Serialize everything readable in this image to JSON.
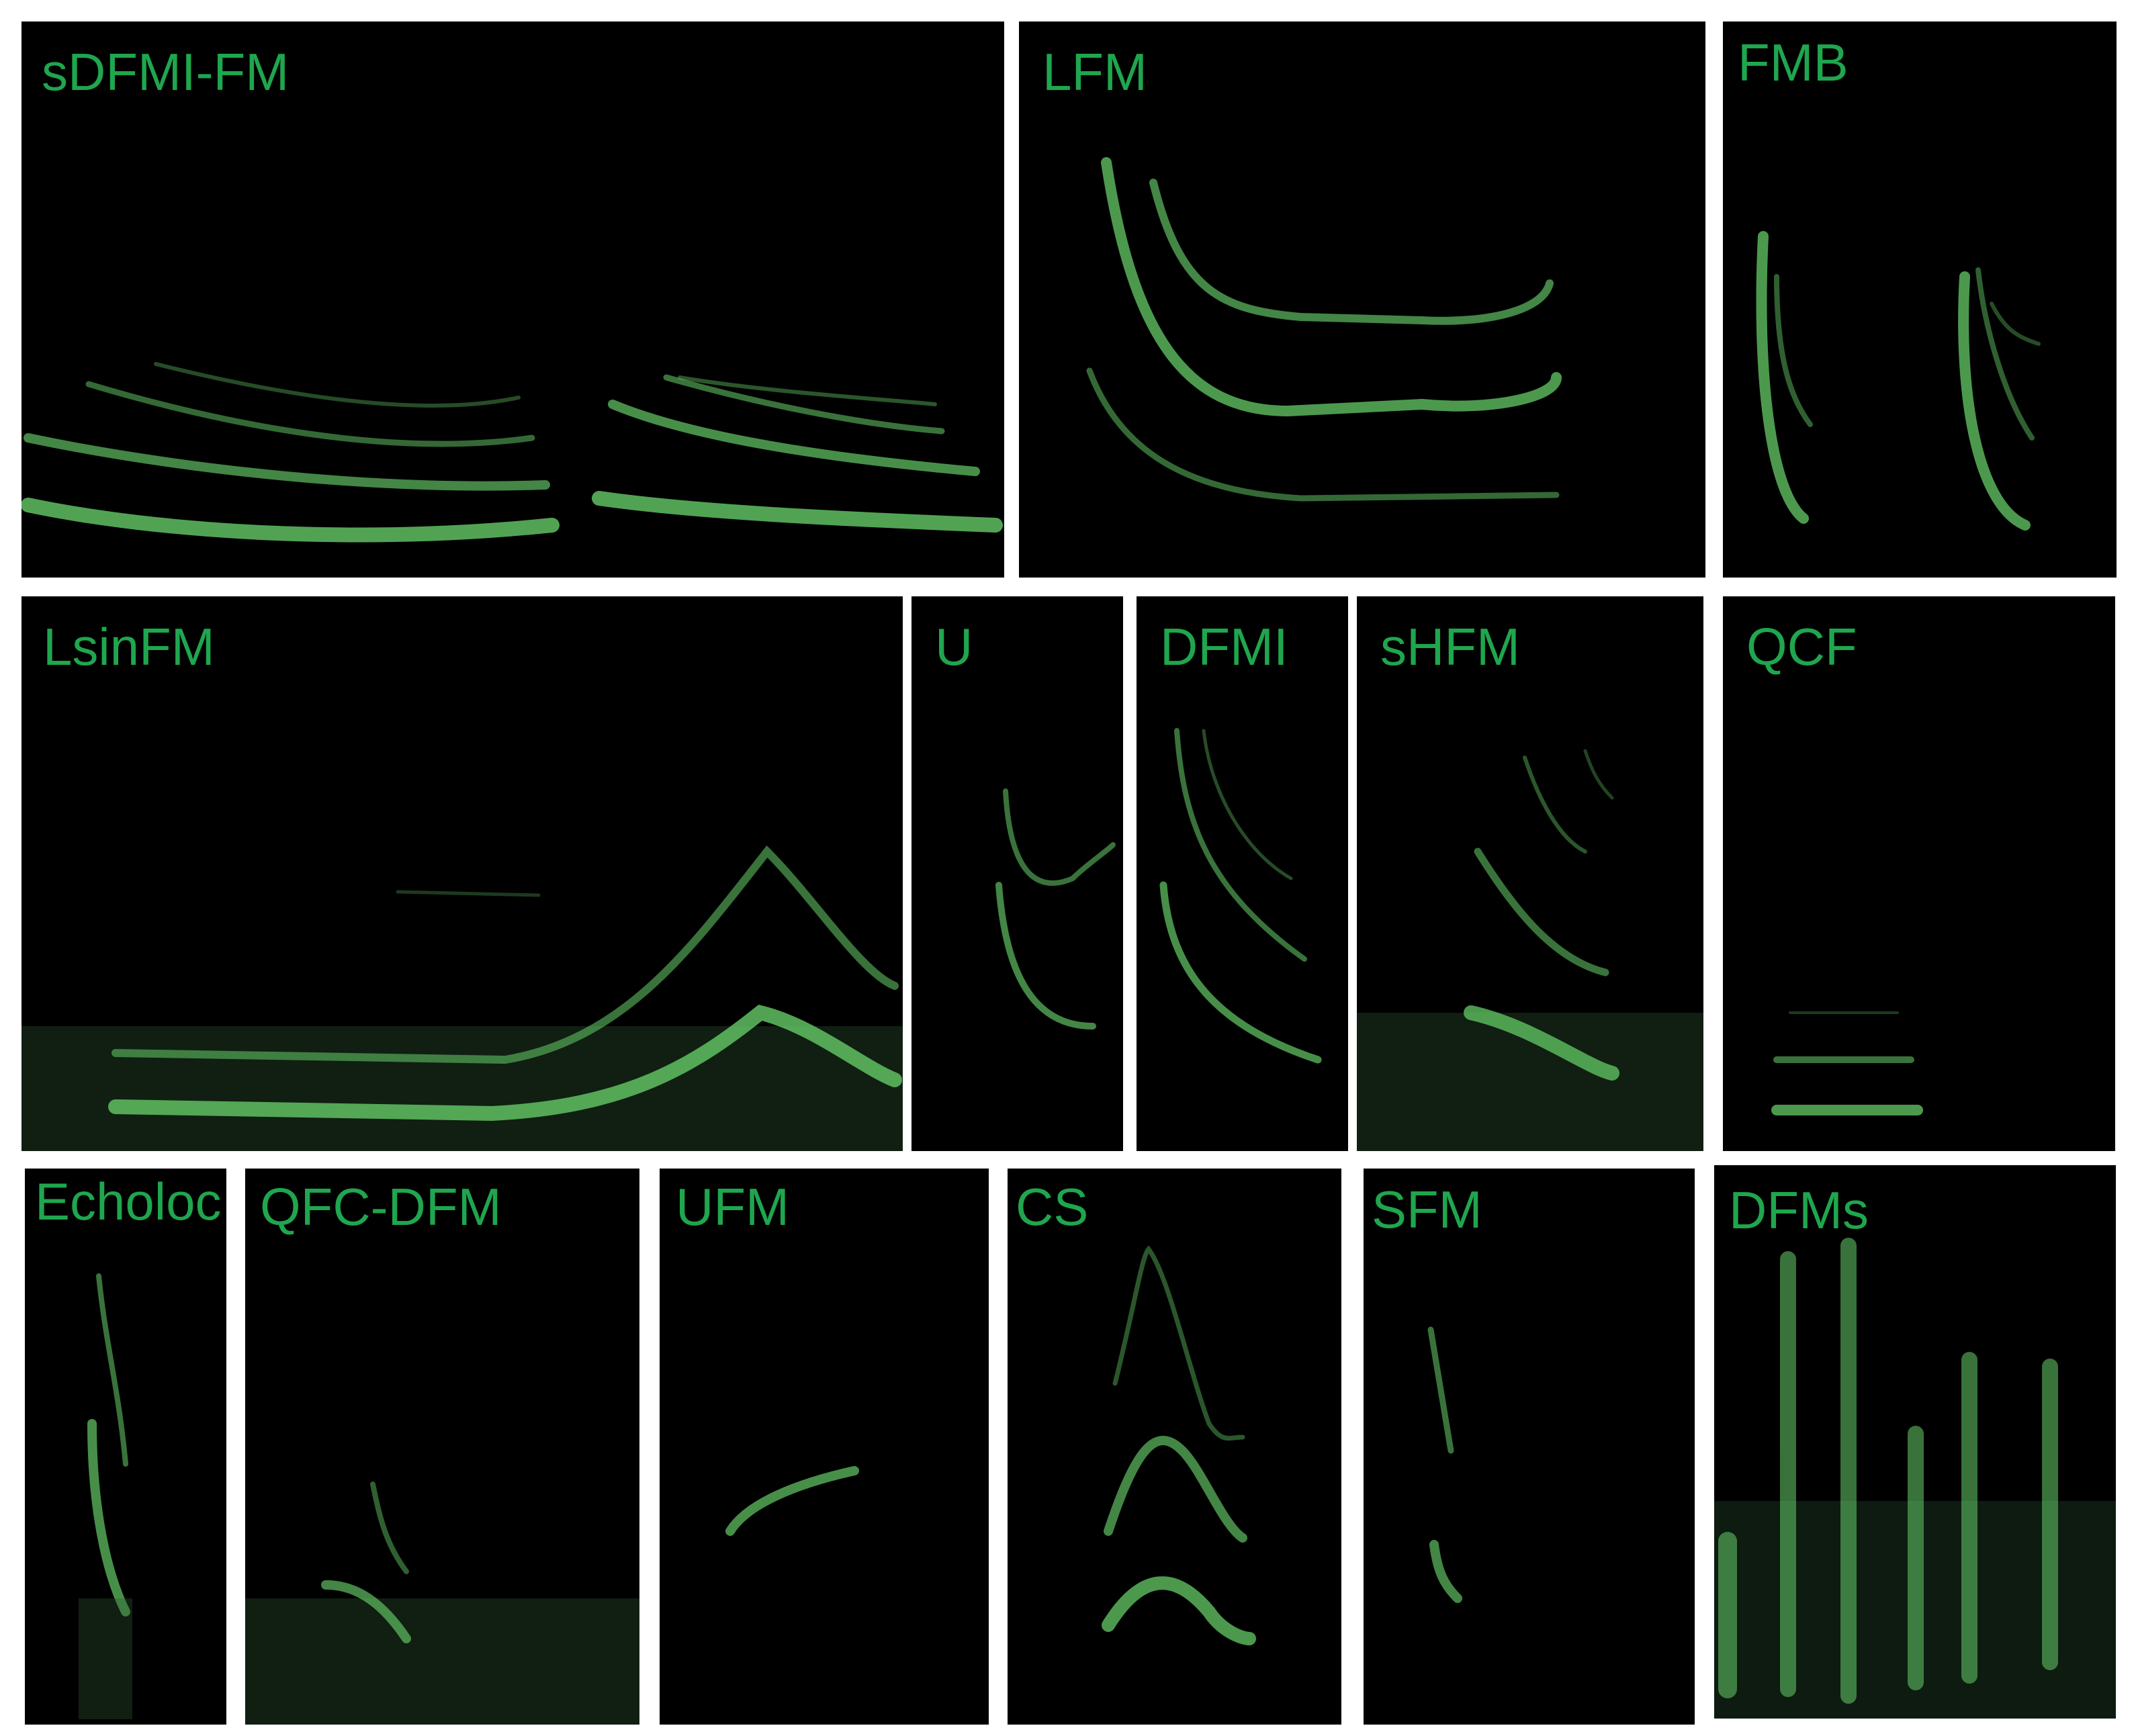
{
  "colors": {
    "background": "#ffffff",
    "panel": "#000000",
    "label": "#1fa64e",
    "trace": "#5fbf62",
    "noise": "#2f5a34"
  },
  "panels": [
    {
      "id": "sdfmi-fm",
      "label": "sDFMI-FM"
    },
    {
      "id": "lfm",
      "label": "LFM"
    },
    {
      "id": "fmb",
      "label": "FMB"
    },
    {
      "id": "lsinfm",
      "label": "LsinFM"
    },
    {
      "id": "u",
      "label": "U"
    },
    {
      "id": "dfmi",
      "label": "DFMI"
    },
    {
      "id": "shfm",
      "label": "sHFM"
    },
    {
      "id": "qcf",
      "label": "QCF"
    },
    {
      "id": "echoloc",
      "label": "Echoloc"
    },
    {
      "id": "qfc-dfm",
      "label": "QFC-DFM"
    },
    {
      "id": "ufm",
      "label": "UFM"
    },
    {
      "id": "cs",
      "label": "CS"
    },
    {
      "id": "sfm",
      "label": "SFM"
    },
    {
      "id": "dfms",
      "label": "DFMs"
    }
  ]
}
